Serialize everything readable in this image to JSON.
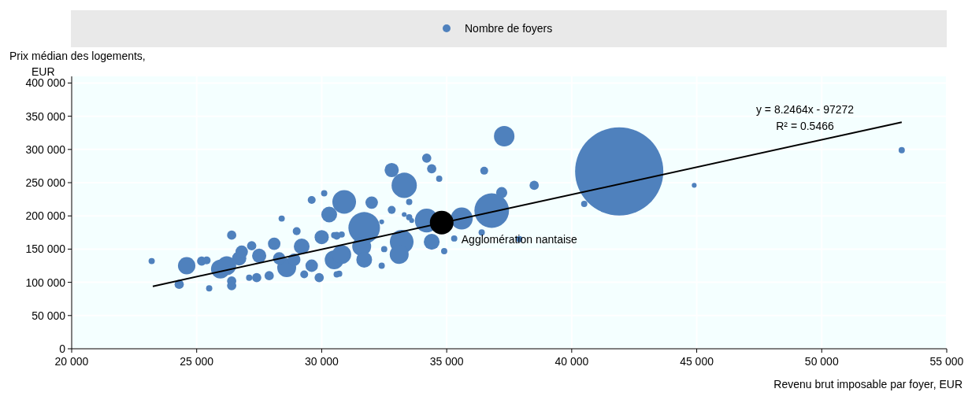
{
  "chart_data": {
    "type": "bubble",
    "xlabel": "Revenu brut imposable par foyer, EUR",
    "ylabel": "Prix médian des logements, EUR",
    "xlim": [
      20000,
      55000
    ],
    "ylim": [
      0,
      410000
    ],
    "xticks": [
      {
        "value": 20000,
        "label": "20 000"
      },
      {
        "value": 25000,
        "label": "25 000"
      },
      {
        "value": 30000,
        "label": "30 000"
      },
      {
        "value": 35000,
        "label": "35 000"
      },
      {
        "value": 40000,
        "label": "40 000"
      },
      {
        "value": 45000,
        "label": "45 000"
      },
      {
        "value": 50000,
        "label": "50 000"
      },
      {
        "value": 55000,
        "label": "55 000"
      }
    ],
    "yticks": [
      0,
      {
        "value": 50000,
        "label": "50 000"
      },
      {
        "value": 100000,
        "label": "100 000"
      },
      {
        "value": 150000,
        "label": "150 000"
      },
      {
        "value": 200000,
        "label": "200 000"
      },
      {
        "value": 250000,
        "label": "250 000"
      },
      {
        "value": 300000,
        "label": "300 000"
      },
      {
        "value": 350000,
        "label": "350 000"
      },
      {
        "value": 400000,
        "label": "400 000"
      }
    ],
    "grid": true,
    "legend": "top",
    "marker": "circle",
    "annotations": [
      "y = 8.2464x - 97272",
      "R² = 0.5466",
      {
        "text": "Agglomération nantaise",
        "x": 34800,
        "y": 190000
      }
    ],
    "series": [
      {
        "name": "Nombre de foyers",
        "color": "#4f81bd",
        "x": [
          23200,
          24300,
          24600,
          25200,
          25400,
          25500,
          26400,
          26400,
          26400,
          25950,
          27100,
          28400,
          29600,
          30100,
          30300,
          30900,
          29000,
          30000,
          29200,
          28100,
          27500,
          26700,
          28600,
          27400,
          27900,
          29300,
          29900,
          30700,
          29600,
          30500,
          30600,
          30800,
          26200,
          26800,
          27200,
          28300,
          28900,
          37300,
          34200,
          34400,
          34700,
          36500,
          32800,
          33300,
          32000,
          33500,
          32800,
          33300,
          33500,
          33600,
          32400,
          37200,
          38500,
          36800,
          35600,
          34200,
          34400,
          36400,
          35300,
          34900,
          31700,
          33200,
          33100,
          32400,
          32500,
          31600,
          30800,
          31700,
          30600,
          30500,
          41900,
          40500,
          37900,
          44900,
          53200
        ],
        "values": [
          132000,
          97000,
          125000,
          132000,
          133000,
          91000,
          102000,
          95000,
          171000,
          120000,
          107000,
          196000,
          224000,
          234000,
          202000,
          221000,
          177000,
          168000,
          154000,
          158000,
          140000,
          136000,
          122000,
          107000,
          110000,
          112000,
          107000,
          113000,
          125000,
          134000,
          170000,
          172000,
          125000,
          146000,
          155000,
          136000,
          134000,
          320000,
          287000,
          271000,
          256000,
          268000,
          269000,
          246000,
          220000,
          221000,
          209000,
          202000,
          198000,
          193000,
          191000,
          235000,
          246000,
          208000,
          196000,
          193000,
          161000,
          175000,
          166000,
          147000,
          182000,
          161000,
          142000,
          125000,
          150000,
          154000,
          142000,
          134000,
          112000,
          171000,
          267000,
          218000,
          165000,
          246000,
          299000
        ],
        "sizes": [
          0.005,
          0.011,
          0.039,
          0.011,
          0.008,
          0.005,
          0.011,
          0.011,
          0.011,
          0.046,
          0.005,
          0.005,
          0.008,
          0.005,
          0.032,
          0.072,
          0.008,
          0.026,
          0.032,
          0.02,
          0.026,
          0.026,
          0.046,
          0.011,
          0.011,
          0.008,
          0.011,
          0.005,
          0.02,
          0.046,
          0.008,
          0.005,
          0.046,
          0.02,
          0.011,
          0.02,
          0.02,
          0.054,
          0.011,
          0.011,
          0.005,
          0.008,
          0.026,
          0.082,
          0.02,
          0.005,
          0.008,
          0.003,
          0.005,
          0.003,
          0.003,
          0.016,
          0.011,
          0.154,
          0.0625,
          0.072,
          0.032,
          0.005,
          0.005,
          0.005,
          0.128,
          0.072,
          0.046,
          0.005,
          0.005,
          0.046,
          0.046,
          0.032,
          0.005,
          0.005,
          1,
          0.005,
          0.005,
          0.003,
          0.005
        ]
      },
      {
        "color": "#000000",
        "x": [
          34800
        ],
        "values": [
          190000
        ],
        "sizes": [
          0.072
        ]
      },
      {
        "type": "line",
        "marker": "none",
        "color": "#000000",
        "x": [
          23245,
          53200
        ],
        "values": [
          94000,
          341000
        ]
      }
    ]
  }
}
